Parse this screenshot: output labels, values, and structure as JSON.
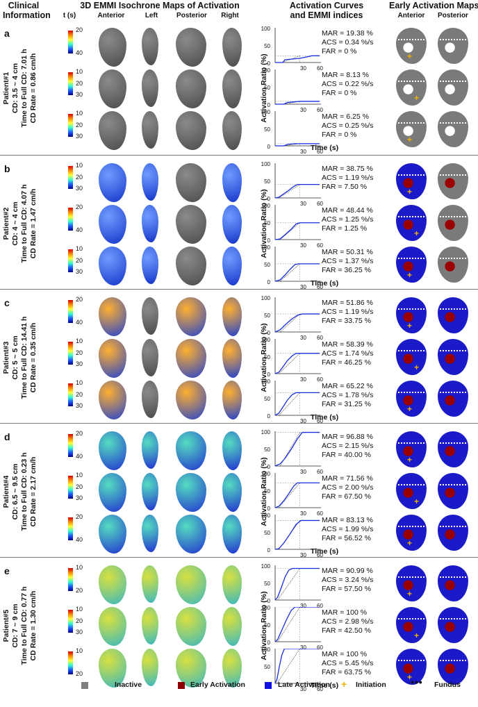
{
  "headers": {
    "clinical_line1": "Clinical",
    "clinical_line2": "Information",
    "isochrone": "3D EMMI Isochrone Maps of Activation",
    "curves_line1": "Activation Curves",
    "curves_line2": "and EMMI indices",
    "early_maps": "Early Activation Maps"
  },
  "subheaders": {
    "t": "t (s)",
    "anterior": "Anterior",
    "left": "Left",
    "posterior": "Posterior",
    "right": "Right",
    "ea_anterior": "Anterior",
    "ea_posterior": "Posterior"
  },
  "axis": {
    "ratio_label": "Activation Ratio (%)",
    "time_label": "Time (s)"
  },
  "colors": {
    "inactive": "#808080",
    "early": "#8b0000",
    "late": "#1010e0",
    "initiation": "#f0b000",
    "fundus": "#111111"
  },
  "patients": [
    {
      "label": "a",
      "info": [
        "Patient#1",
        "CD: 3.5 ~ 4 cm",
        "Time to Full CD: 7.01 h",
        "CD Rate = 0.86 cm/h"
      ],
      "rows": [
        {
          "cb": [
            "20",
            "40"
          ],
          "mar": "MAR = 19.38 %",
          "acs": "ACS = 0.34 %/s",
          "far": "FAR = 0 %",
          "yticks": [
            "100",
            "50",
            "0"
          ],
          "xticks": [
            "30",
            "60"
          ],
          "curve": [
            [
              0,
              0
            ],
            [
              12,
              0
            ],
            [
              16,
              8
            ],
            [
              40,
              12
            ],
            [
              60,
              19.38
            ],
            [
              72,
              19.38
            ]
          ]
        },
        {
          "cb": [
            "10",
            "20",
            "30"
          ],
          "mar": "MAR = 8.13 %",
          "acs": "ACS = 0.22 %/s",
          "far": "FAR = 0 %",
          "yticks": [
            "100",
            "50",
            "0"
          ],
          "xticks": [
            "30",
            "60"
          ],
          "curve": [
            [
              0,
              0
            ],
            [
              14,
              0
            ],
            [
              20,
              5
            ],
            [
              40,
              8.13
            ],
            [
              72,
              8.13
            ]
          ]
        },
        {
          "cb": [
            "10",
            "20",
            "30"
          ],
          "mar": "MAR = 6.25 %",
          "acs": "ACS = 0.25 %/s",
          "far": "FAR = 0 %",
          "yticks": [
            "100",
            "50",
            "0"
          ],
          "xticks": [
            "30",
            "60"
          ],
          "curve": [
            [
              0,
              0
            ],
            [
              14,
              0
            ],
            [
              20,
              4
            ],
            [
              30,
              6.25
            ],
            [
              72,
              6.25
            ]
          ]
        }
      ]
    },
    {
      "label": "b",
      "info": [
        "Patient#2",
        "CD: 4 ~ 4 cm",
        "Time to Full CD: 4.07 h",
        "CD Rate = 1.47 cm/h"
      ],
      "rows": [
        {
          "cb": [
            "10",
            "20",
            "30"
          ],
          "mar": "MAR = 38.75 %",
          "acs": "ACS = 1.19 %/s",
          "far": "FAR = 7.50 %",
          "yticks": [
            "100",
            "50",
            "0"
          ],
          "xticks": [
            "30",
            "60"
          ],
          "curve": [
            [
              0,
              0
            ],
            [
              6,
              2
            ],
            [
              14,
              12
            ],
            [
              22,
              22
            ],
            [
              30,
              33
            ],
            [
              36,
              38.75
            ],
            [
              72,
              38.75
            ]
          ]
        },
        {
          "cb": [
            "20",
            "40"
          ],
          "mar": "MAR = 48.44 %",
          "acs": "ACS = 1.25 %/s",
          "far": "FAR = 1.25 %",
          "yticks": [
            "100",
            "50",
            "0"
          ],
          "xticks": [
            "30",
            "60"
          ],
          "curve": [
            [
              0,
              0
            ],
            [
              8,
              2
            ],
            [
              16,
              14
            ],
            [
              26,
              30
            ],
            [
              34,
              45
            ],
            [
              40,
              48.44
            ],
            [
              72,
              48.44
            ]
          ]
        },
        {
          "cb": [
            "10",
            "20",
            "30"
          ],
          "mar": "MAR = 50.31 %",
          "acs": "ACS = 1.37 %/s",
          "far": "FAR = 36.25 %",
          "yticks": [
            "100",
            "50",
            "0"
          ],
          "xticks": [
            "30",
            "60"
          ],
          "curve": [
            [
              0,
              0
            ],
            [
              8,
              4
            ],
            [
              16,
              18
            ],
            [
              24,
              34
            ],
            [
              32,
              48
            ],
            [
              38,
              50.31
            ],
            [
              72,
              50.31
            ]
          ]
        }
      ]
    },
    {
      "label": "c",
      "info": [
        "Patient#3",
        "CD: 5 ~ 5 cm",
        "Time to Full CD: 14.41 h",
        "CD Rate = 0.35 cm/h"
      ],
      "rows": [
        {
          "cb": [
            "20",
            "40"
          ],
          "mar": "MAR = 51.86 %",
          "acs": "ACS = 1.19 %/s",
          "far": "FAR = 33.75 %",
          "yticks": [
            "100",
            "50",
            "0"
          ],
          "xticks": [
            "30",
            "60"
          ],
          "curve": [
            [
              0,
              0
            ],
            [
              8,
              6
            ],
            [
              16,
              20
            ],
            [
              26,
              36
            ],
            [
              36,
              48
            ],
            [
              44,
              51.86
            ],
            [
              72,
              51.86
            ]
          ]
        },
        {
          "cb": [
            "10",
            "20",
            "30"
          ],
          "mar": "MAR = 58.39 %",
          "acs": "ACS = 1.74 %/s",
          "far": "FAR = 46.25 %",
          "yticks": [
            "100",
            "50",
            "0"
          ],
          "xticks": [
            "30",
            "60"
          ],
          "curve": [
            [
              0,
              0
            ],
            [
              6,
              4
            ],
            [
              12,
              18
            ],
            [
              20,
              38
            ],
            [
              28,
              52
            ],
            [
              34,
              58.39
            ],
            [
              72,
              58.39
            ]
          ]
        },
        {
          "cb": [
            "10",
            "20",
            "30"
          ],
          "mar": "MAR = 65.22 %",
          "acs": "ACS = 1.78 %/s",
          "far": "FAR = 31.25 %",
          "yticks": [
            "100",
            "50",
            "0"
          ],
          "xticks": [
            "30",
            "60"
          ],
          "curve": [
            [
              0,
              0
            ],
            [
              6,
              6
            ],
            [
              12,
              22
            ],
            [
              20,
              44
            ],
            [
              28,
              60
            ],
            [
              34,
              65.22
            ],
            [
              72,
              65.22
            ]
          ]
        }
      ]
    },
    {
      "label": "d",
      "info": [
        "Patient#4",
        "CD: 6.5 ~ 9.5 cm",
        "Time to Full CD: 0.23 h",
        "CD Rate = 2.17 cm/h"
      ],
      "rows": [
        {
          "cb": [
            "20",
            "40"
          ],
          "mar": "MAR = 96.88 %",
          "acs": "ACS = 2.15 %/s",
          "far": "FAR = 40.00 %",
          "yticks": [
            "100",
            "50",
            "0"
          ],
          "xticks": [
            "30",
            "60"
          ],
          "curve": [
            [
              0,
              0
            ],
            [
              8,
              6
            ],
            [
              16,
              22
            ],
            [
              26,
              48
            ],
            [
              36,
              78
            ],
            [
              44,
              96.88
            ],
            [
              72,
              96.88
            ]
          ]
        },
        {
          "cb": [
            "10",
            "20",
            "30"
          ],
          "mar": "MAR = 71.56 %",
          "acs": "ACS = 2.00 %/s",
          "far": "FAR = 67.50 %",
          "yticks": [
            "100",
            "50",
            "0"
          ],
          "xticks": [
            "30",
            "60"
          ],
          "curve": [
            [
              0,
              0
            ],
            [
              6,
              4
            ],
            [
              14,
              20
            ],
            [
              22,
              40
            ],
            [
              30,
              62
            ],
            [
              36,
              71.56
            ],
            [
              72,
              71.56
            ]
          ]
        },
        {
          "cb": [
            "20",
            "40"
          ],
          "mar": "MAR = 83.13 %",
          "acs": "ACS = 1.99 %/s",
          "far": "FAR = 56.52 %",
          "yticks": [
            "100",
            "50",
            "0"
          ],
          "xticks": [
            "30",
            "60"
          ],
          "curve": [
            [
              0,
              0
            ],
            [
              6,
              2
            ],
            [
              14,
              18
            ],
            [
              24,
              44
            ],
            [
              34,
              72
            ],
            [
              42,
              83.13
            ],
            [
              72,
              83.13
            ]
          ]
        }
      ]
    },
    {
      "label": "e",
      "info": [
        "Patient#5",
        "CD: 7 ~ 9 cm",
        "Time to Full CD: 0.77 h",
        "CD Rate = 1.30 cm/h"
      ],
      "rows": [
        {
          "cb": [
            "10",
            "20"
          ],
          "mar": "MAR = 90.99 %",
          "acs": "ACS = 3.24 %/s",
          "far": "FAR = 57.50 %",
          "yticks": [
            "100",
            "50",
            "0"
          ],
          "xticks": [
            "30",
            "60"
          ],
          "curve": [
            [
              0,
              0
            ],
            [
              4,
              8
            ],
            [
              10,
              36
            ],
            [
              16,
              66
            ],
            [
              22,
              86
            ],
            [
              28,
              90.99
            ],
            [
              72,
              90.99
            ]
          ]
        },
        {
          "cb": [
            "10",
            "20",
            "30"
          ],
          "mar": "MAR = 100 %",
          "acs": "ACS = 2.98 %/s",
          "far": "FAR = 42.50 %",
          "yticks": [
            "100",
            "50",
            "0"
          ],
          "xticks": [
            "30",
            "60"
          ],
          "curve": [
            [
              0,
              0
            ],
            [
              4,
              6
            ],
            [
              10,
              30
            ],
            [
              18,
              62
            ],
            [
              26,
              90
            ],
            [
              32,
              100
            ],
            [
              72,
              100
            ]
          ]
        },
        {
          "cb": [
            "10",
            "20"
          ],
          "mar": "MAR = 100 %",
          "acs": "ACS = 5.45 %/s",
          "far": "FAR = 63.75 %",
          "yticks": [
            "100",
            "50",
            "0"
          ],
          "xticks": [
            "30",
            "60"
          ],
          "curve": [
            [
              0,
              0
            ],
            [
              3,
              12
            ],
            [
              7,
              50
            ],
            [
              11,
              82
            ],
            [
              15,
              100
            ],
            [
              72,
              100
            ]
          ]
        }
      ]
    }
  ],
  "legend": {
    "inactive": "Inactive",
    "early": "Early Activation",
    "late": "Late Activation",
    "initiation": "Initiation",
    "fundus": "Fundus"
  }
}
